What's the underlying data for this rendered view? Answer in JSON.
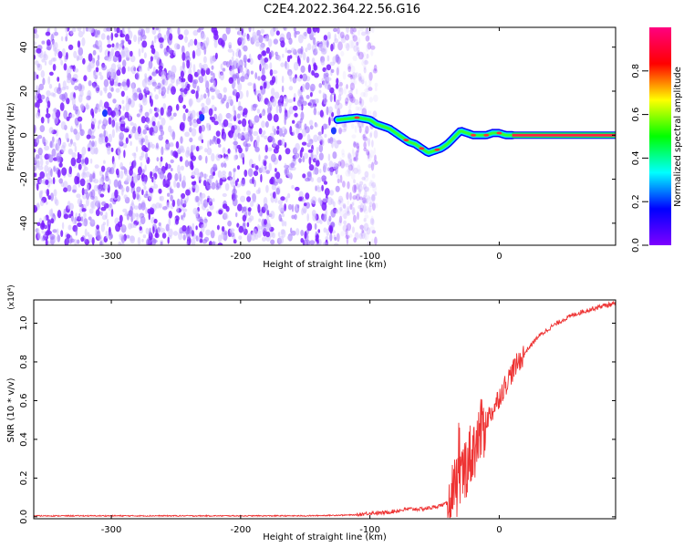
{
  "title": "C2E4.2022.364.22.56.G16",
  "chart_data": [
    {
      "type": "heatmap",
      "xlabel": "Height of straight line (km)",
      "ylabel": "Frequency (Hz)",
      "xlim": [
        -360,
        90
      ],
      "ylim": [
        -50,
        49
      ],
      "xticks": [
        -300,
        -200,
        -100,
        0
      ],
      "yticks": [
        -40,
        -20,
        0,
        20,
        40
      ],
      "colorbar": {
        "label": "Normalized spectral amplitude",
        "range": [
          0,
          1
        ],
        "ticks": [
          0.0,
          0.2,
          0.4,
          0.6,
          0.8
        ],
        "colormap": [
          "#7e00ff",
          "#0000ff",
          "#00ffff",
          "#00ff00",
          "#ffff00",
          "#ff0000",
          "#ff0080"
        ]
      },
      "noise_region_x": [
        -360,
        -95
      ],
      "ridge": {
        "x": [
          -125,
          -110,
          -100,
          -95,
          -90,
          -85,
          -80,
          -75,
          -70,
          -65,
          -60,
          -55,
          -50,
          -45,
          -40,
          -35,
          -30,
          -25,
          -20,
          -15,
          -10,
          -5,
          0,
          5,
          10,
          90
        ],
        "frequency_hz": [
          7,
          8,
          7,
          5,
          4,
          3,
          1,
          -1,
          -3,
          -4,
          -6,
          -8,
          -7,
          -6,
          -4,
          -1,
          2,
          1,
          0,
          0,
          0,
          1,
          1,
          0,
          0,
          0
        ]
      }
    },
    {
      "type": "line",
      "xlabel": "Height of straight line (km)",
      "ylabel": "SNR (10 * v/v)",
      "y_multiplier": "(x10⁴)",
      "xlim": [
        -360,
        90
      ],
      "ylim": [
        -0.01,
        1.12
      ],
      "xticks": [
        -300,
        -200,
        -100,
        0
      ],
      "yticks": [
        0.0,
        0.2,
        0.4,
        0.6,
        0.8,
        1.0
      ],
      "series_color": "#ee3333",
      "series": [
        {
          "x": [
            -360,
            -300,
            -200,
            -150,
            -110,
            -100,
            -90,
            -80,
            -70,
            -60,
            -50,
            -40,
            -35,
            -30,
            -25,
            -20,
            -15,
            -10,
            -5,
            0,
            10,
            20,
            30,
            40,
            50,
            60,
            70,
            80,
            90
          ],
          "values": [
            0.005,
            0.005,
            0.005,
            0.005,
            0.01,
            0.02,
            0.02,
            0.03,
            0.04,
            0.04,
            0.05,
            0.07,
            0.12,
            0.2,
            0.28,
            0.35,
            0.42,
            0.5,
            0.55,
            0.62,
            0.75,
            0.85,
            0.93,
            0.98,
            1.02,
            1.05,
            1.07,
            1.09,
            1.1
          ]
        }
      ]
    }
  ]
}
